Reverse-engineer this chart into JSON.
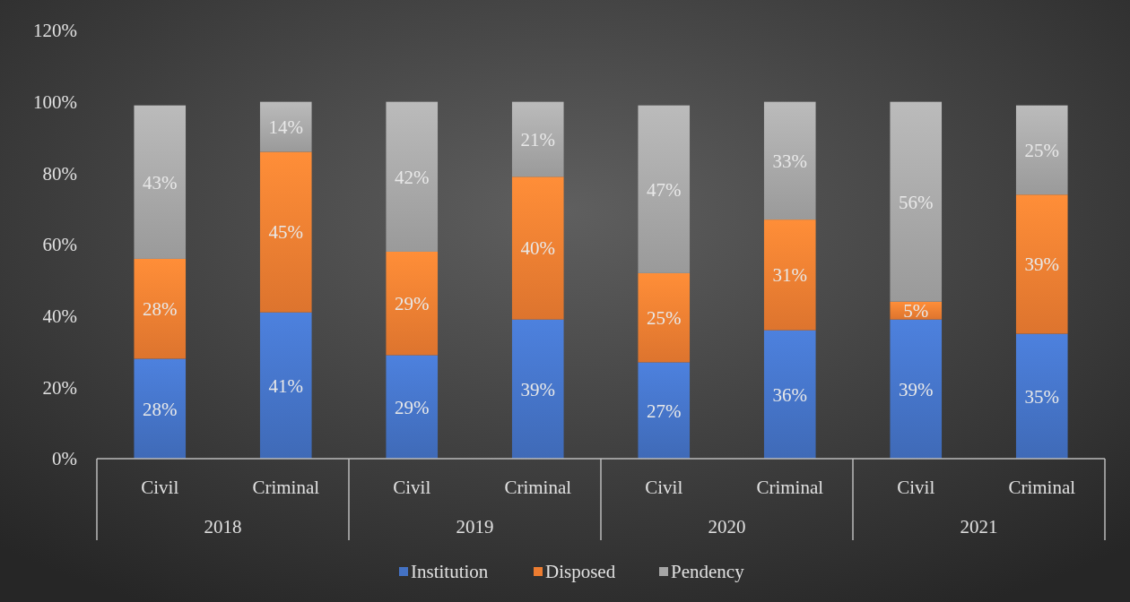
{
  "chart_data": {
    "type": "bar",
    "stacked": true,
    "categories": [
      "Civil",
      "Criminal",
      "Civil",
      "Criminal",
      "Civil",
      "Criminal",
      "Civil",
      "Criminal"
    ],
    "annotations": [
      "2018",
      "2019",
      "2020",
      "2021"
    ],
    "series": [
      {
        "name": "Institution",
        "color": "#4472c4",
        "values": [
          28,
          41,
          29,
          39,
          27,
          36,
          39,
          35
        ],
        "value_labels": [
          "28%",
          "41%",
          "29%",
          "39%",
          "27%",
          "36%",
          "39%",
          "35%"
        ]
      },
      {
        "name": "Disposed",
        "color": "#ed7d31",
        "values": [
          28,
          45,
          29,
          40,
          25,
          31,
          5,
          39
        ],
        "value_labels": [
          "28%",
          "45%",
          "29%",
          "40%",
          "25%",
          "31%",
          "5%",
          "39%"
        ]
      },
      {
        "name": "Pendency",
        "color": "#a5a5a5",
        "values": [
          43,
          14,
          42,
          21,
          47,
          33,
          56,
          25
        ],
        "value_labels": [
          "43%",
          "14%",
          "42%",
          "21%",
          "47%",
          "33%",
          "56%",
          "25%"
        ]
      }
    ],
    "ylim": [
      0,
      120
    ],
    "yticks": [
      {
        "value": 0,
        "label": "0%"
      },
      {
        "value": 20,
        "label": "20%"
      },
      {
        "value": 40,
        "label": "40%"
      },
      {
        "value": 60,
        "label": "60%"
      },
      {
        "value": 80,
        "label": "80%"
      },
      {
        "value": 100,
        "label": "100%"
      },
      {
        "value": 120,
        "label": "120%"
      }
    ],
    "grid": false,
    "legend": "bottom"
  }
}
